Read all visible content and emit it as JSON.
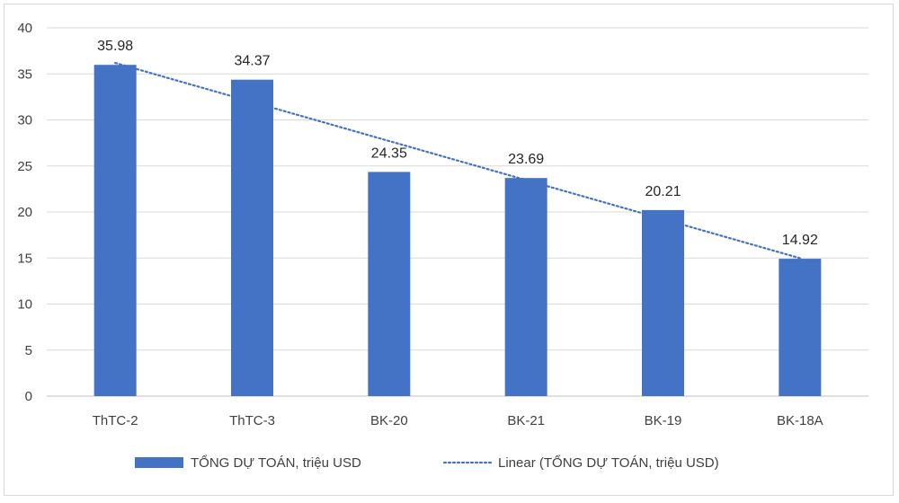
{
  "chart_data": {
    "type": "bar",
    "categories": [
      "ThTC-2",
      "ThTC-3",
      "BK-20",
      "BK-21",
      "BK-19",
      "BK-18A"
    ],
    "series": [
      {
        "name": "TỔNG DỰ TOÁN, triệu USD",
        "values": [
          35.98,
          34.37,
          24.35,
          23.69,
          20.21,
          14.92
        ],
        "color": "#4472c4"
      }
    ],
    "data_labels": [
      "35.98",
      "34.37",
      "24.35",
      "23.69",
      "20.21",
      "14.92"
    ],
    "trendline": {
      "name": "Linear (TỔNG DỰ TOÁN, triệu USD)",
      "type": "linear",
      "color": "#4472c4",
      "style": "dotted"
    },
    "ylim": [
      0,
      40
    ],
    "yticks": [
      "0",
      "5",
      "10",
      "15",
      "20",
      "25",
      "30",
      "35",
      "40"
    ],
    "grid": true,
    "legend_position": "bottom",
    "title": "",
    "xlabel": "",
    "ylabel": ""
  }
}
